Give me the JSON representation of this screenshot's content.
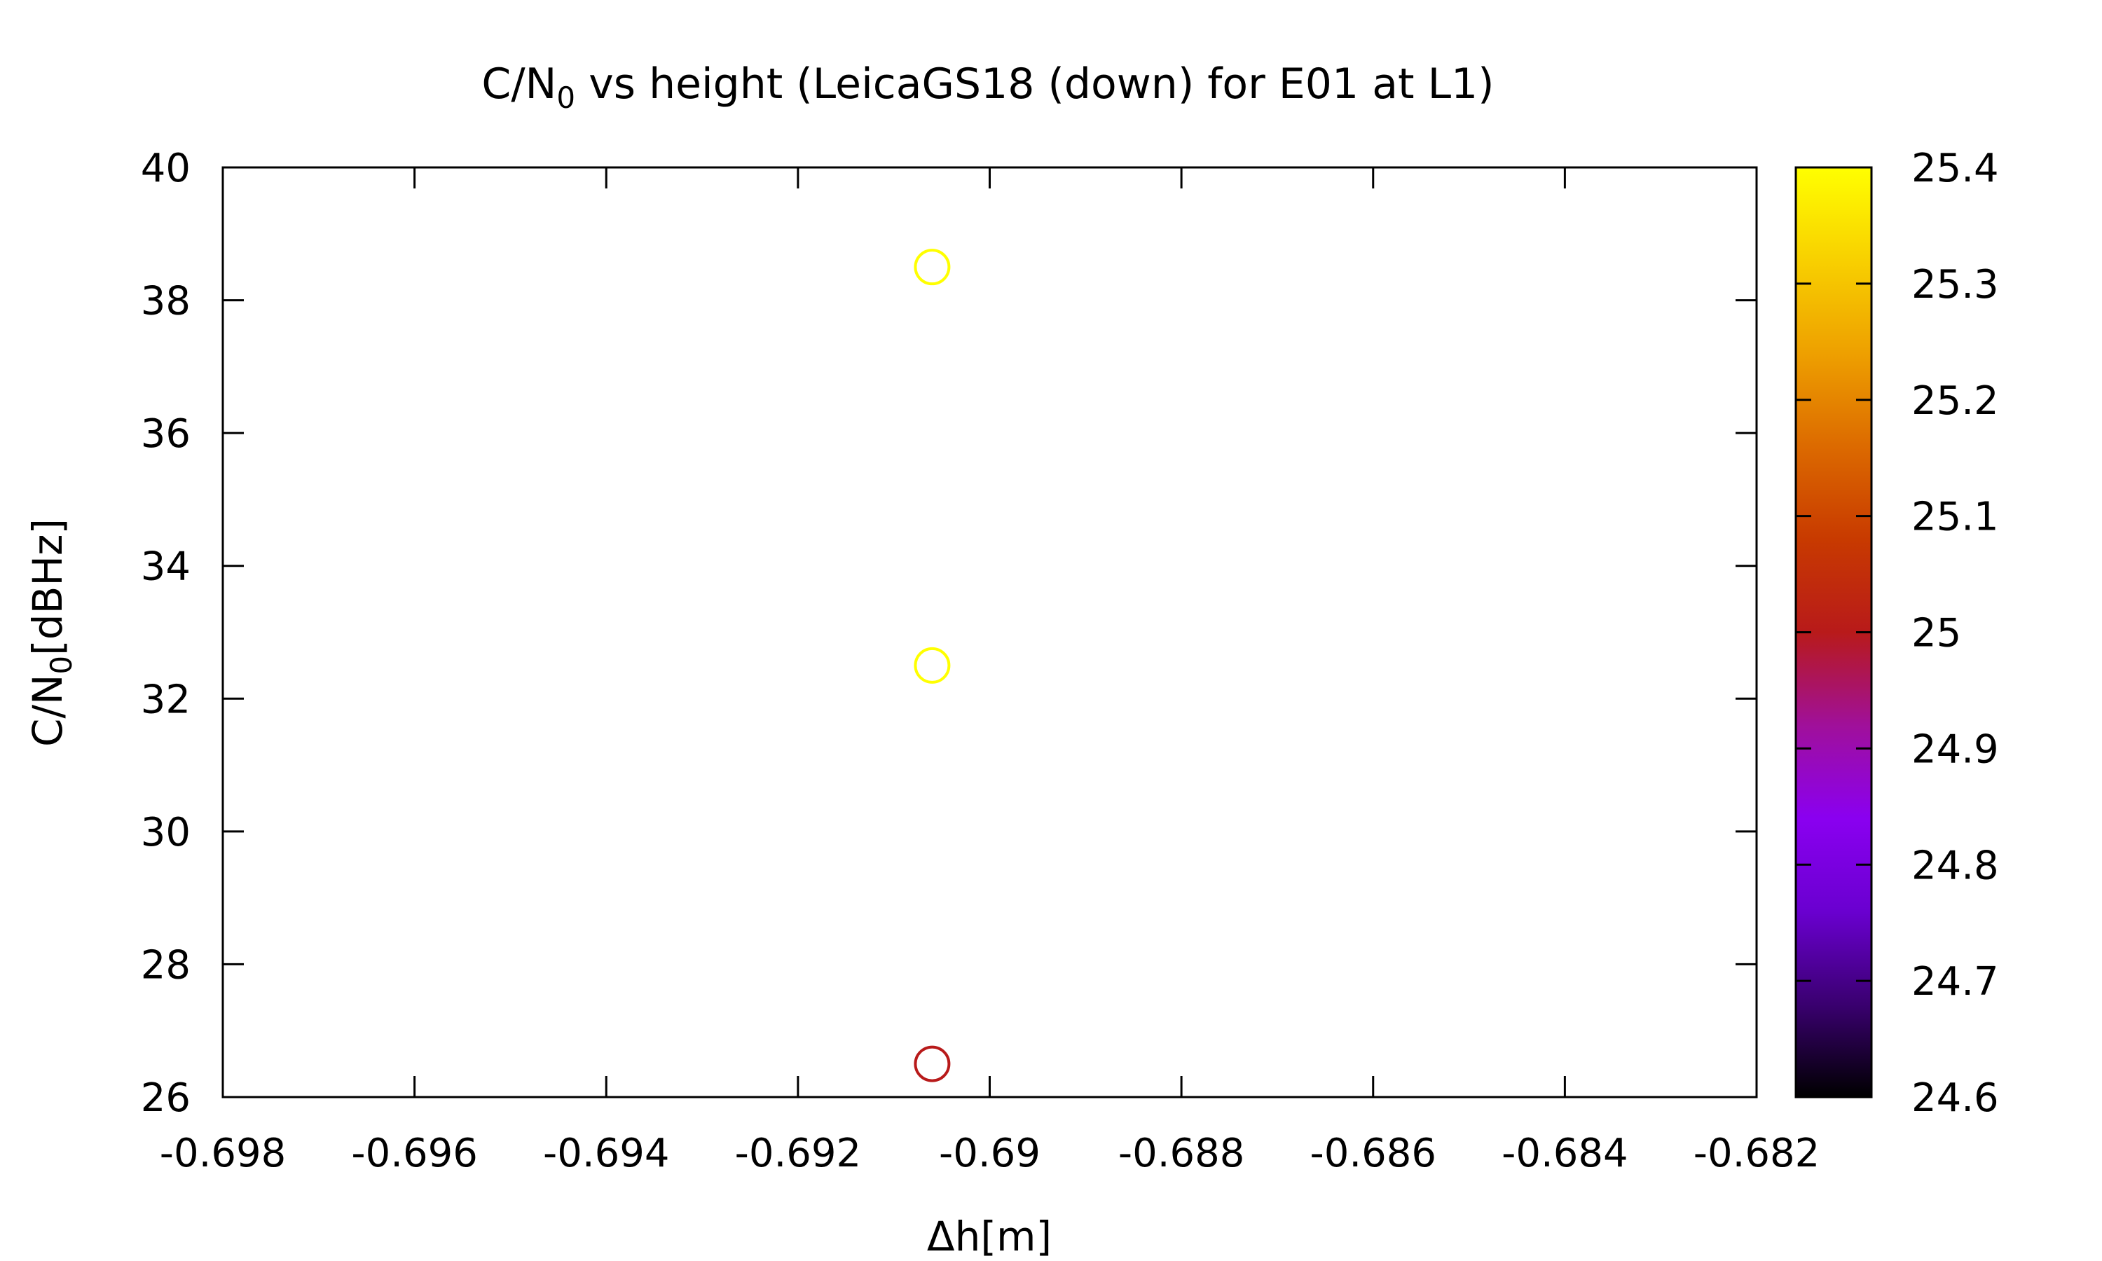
{
  "chart_data": {
    "type": "scatter",
    "title": "C/N",
    "title_sub": "0",
    "title_rest": " vs height (LeicaGS18 (down) for E01 at L1)",
    "xlabel": "Δh[m]",
    "ylabel": "C/N",
    "ylabel_sub": "0",
    "ylabel_rest": "[dBHz]",
    "xlim": [
      -0.698,
      -0.682
    ],
    "ylim": [
      26,
      40
    ],
    "x_ticks": [
      "-0.698",
      "-0.696",
      "-0.694",
      "-0.692",
      "-0.69",
      "-0.688",
      "-0.686",
      "-0.684",
      "-0.682"
    ],
    "y_ticks": [
      "26",
      "28",
      "30",
      "32",
      "34",
      "36",
      "38",
      "40"
    ],
    "colorbar": {
      "range": [
        24.6,
        25.4
      ],
      "ticks": [
        "24.6",
        "24.7",
        "24.8",
        "24.9",
        "25",
        "25.1",
        "25.2",
        "25.3",
        "25.4"
      ],
      "palette": [
        "#000000",
        "#3a0070",
        "#6a00d0",
        "#8a00f0",
        "#a0109a",
        "#b81a1a",
        "#c83a00",
        "#dc6a00",
        "#eea000",
        "#f8d000",
        "#ffff00"
      ]
    },
    "points": [
      {
        "x": -0.6906,
        "y": 38.5,
        "c": 25.4
      },
      {
        "x": -0.6906,
        "y": 32.5,
        "c": 25.4
      },
      {
        "x": -0.6906,
        "y": 26.5,
        "c": 25.0
      }
    ],
    "marker": "open-circle",
    "grid": false
  }
}
